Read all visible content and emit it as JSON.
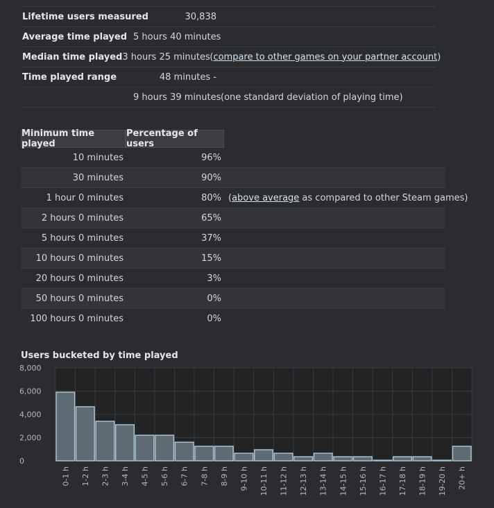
{
  "summary": {
    "rows": [
      {
        "label": "Lifetime users measured",
        "value": "30,838"
      },
      {
        "label": "Average time played",
        "value": "5 hours 40 minutes"
      },
      {
        "label": "Median time played",
        "value": "3 hours 25 minutes",
        "note_prefix": "(",
        "note_link": "compare to other games on your partner account",
        "note_suffix": ")"
      },
      {
        "label": "Time played range",
        "value": "48 minutes -"
      },
      {
        "label": "",
        "value": "9 hours 39 minutes",
        "note_prefix": "(one standard deviation of playing time)"
      }
    ]
  },
  "min_table": {
    "headers": [
      "Minimum time played",
      "Percentage of users"
    ],
    "rows": [
      {
        "time": "10 minutes",
        "pct": "96%"
      },
      {
        "time": "30 minutes",
        "pct": "90%"
      },
      {
        "time": "1 hour 0 minutes",
        "pct": "80%",
        "note_prefix": "(",
        "note_link": "above average",
        "note_suffix": " as compared to other Steam games)"
      },
      {
        "time": "2 hours 0 minutes",
        "pct": "65%"
      },
      {
        "time": "5 hours 0 minutes",
        "pct": "37%"
      },
      {
        "time": "10 hours 0 minutes",
        "pct": "15%"
      },
      {
        "time": "20 hours 0 minutes",
        "pct": "3%"
      },
      {
        "time": "50 hours 0 minutes",
        "pct": "0%"
      },
      {
        "time": "100 hours 0 minutes",
        "pct": "0%"
      }
    ]
  },
  "chart_data": {
    "type": "bar",
    "title": "Users bucketed by time played",
    "xlabel": "",
    "ylabel": "",
    "ylim": [
      0,
      8000
    ],
    "yticks": [
      0,
      2000,
      4000,
      6000,
      8000
    ],
    "ytick_labels": [
      "0",
      "2,000",
      "4,000",
      "6,000",
      "8,000"
    ],
    "grid": true,
    "categories": [
      "0-1 h",
      "1-2 h",
      "2-3 h",
      "3-4 h",
      "4-5 h",
      "5-6 h",
      "6-7 h",
      "7-8 h",
      "8-9 h",
      "9-10 h",
      "10-11 h",
      "11-12 h",
      "12-13 h",
      "13-14 h",
      "14-15 h",
      "15-16 h",
      "16-17 h",
      "17-18 h",
      "18-19 h",
      "19-20 h",
      "20+ h"
    ],
    "values": [
      5900,
      4650,
      3400,
      3100,
      2200,
      2200,
      1600,
      1250,
      1250,
      650,
      950,
      650,
      350,
      650,
      350,
      350,
      50,
      350,
      350,
      50,
      1250
    ],
    "colors": {
      "bar_fill": "#5e6b72",
      "bar_stroke": "#a9c2cf",
      "plot_bg": "#222325",
      "grid": "#3a3b3e"
    }
  }
}
